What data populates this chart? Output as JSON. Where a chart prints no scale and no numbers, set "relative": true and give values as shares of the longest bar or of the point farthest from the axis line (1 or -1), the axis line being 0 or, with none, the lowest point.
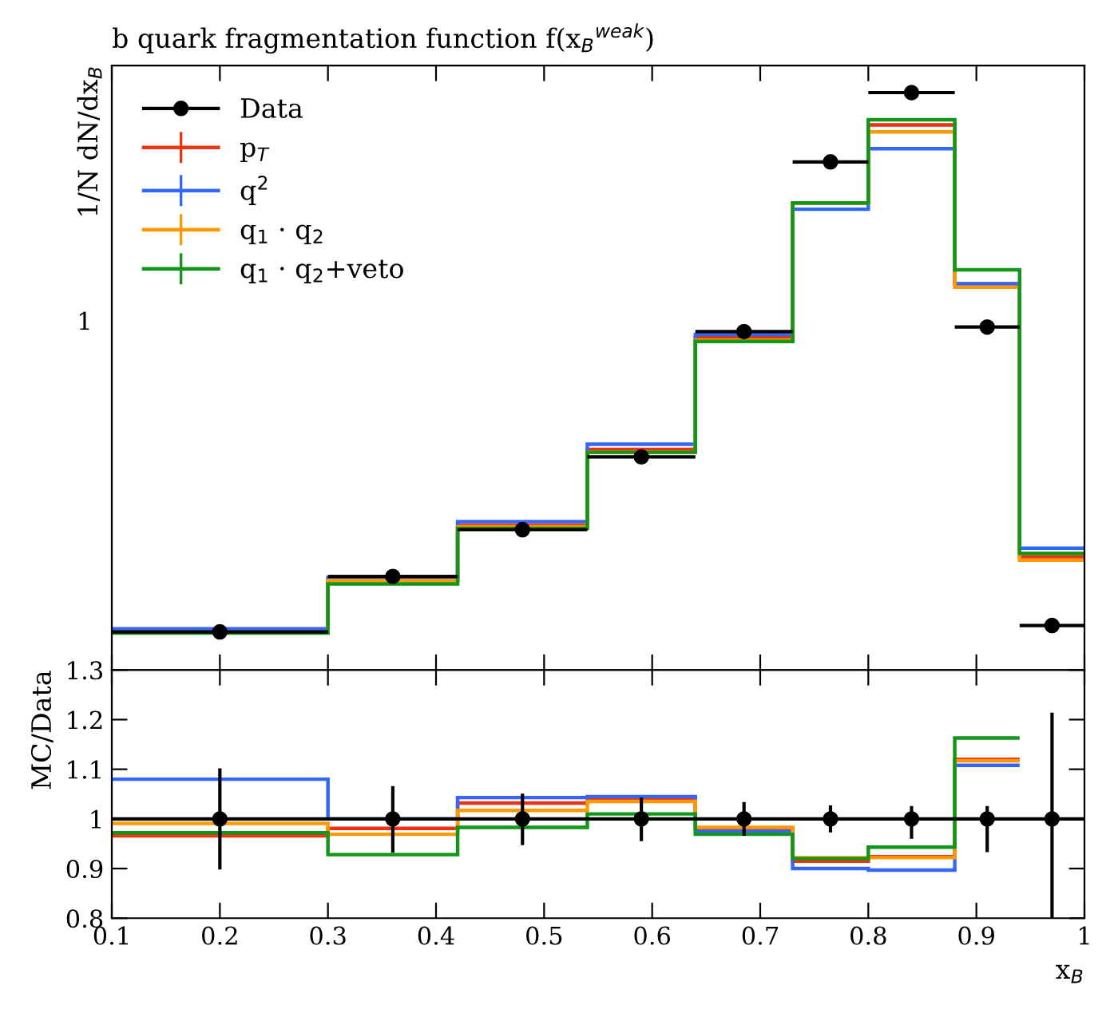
{
  "chart_data": [
    {
      "type": "histogram",
      "title": "b quark fragmentation function f(x$_{B}$$^{weak}$)",
      "ylabel": "1/N dN/dx$_{B}$",
      "relative": true,
      "xlim": [
        0.1,
        1
      ],
      "tick_labels": false,
      "legend": "top left",
      "grid": false,
      "annotations": [
        "1"
      ],
      "bins": [
        0.1,
        0.3,
        0.42,
        0.54,
        0.64,
        0.73,
        0.8,
        0.88,
        0.94,
        1.0
      ],
      "series": [
        {
          "name": "Data",
          "type": "scatter",
          "marker": "circle",
          "color": "#000000",
          "x": [
            0.2,
            0.36,
            0.48,
            0.59,
            0.685,
            0.765,
            0.84,
            0.91,
            0.97
          ],
          "values": [
            0.066,
            0.162,
            0.243,
            0.369,
            0.586,
            0.88,
            1,
            0.594,
            0.077
          ],
          "xerrors": [
            [
              0.1,
              0.3
            ],
            [
              0.3,
              0.42
            ],
            [
              0.42,
              0.54
            ],
            [
              0.54,
              0.64
            ],
            [
              0.64,
              0.73
            ],
            [
              0.73,
              0.8
            ],
            [
              0.8,
              0.88
            ],
            [
              0.88,
              0.94
            ],
            [
              0.94,
              1.0
            ]
          ]
        },
        {
          "name": "p$_{T}$",
          "color": "#ee3311",
          "values": [
            0.0652,
            0.156,
            0.251,
            0.382,
            0.576,
            0.809,
            0.944,
            0.669,
            0.196
          ]
        },
        {
          "name": "q$^{2}$",
          "color": "#3366ff",
          "values": [
            0.0712,
            0.16,
            0.257,
            0.391,
            0.581,
            0.798,
            0.903,
            0.669,
            0.211
          ]
        },
        {
          "name": "q$_{1}$ · q$_{2}$",
          "color": "#ff9900",
          "values": [
            0.0655,
            0.155,
            0.248,
            0.377,
            0.571,
            0.809,
            0.932,
            0.663,
            0.19
          ]
        },
        {
          "name": "q$_{1}$ · q$_{2}$+veto",
          "color": "#109618",
          "values": [
            0.064,
            0.149,
            0.245,
            0.377,
            0.569,
            0.809,
            0.953,
            0.693,
            0.202
          ]
        }
      ]
    },
    {
      "type": "histogram",
      "xlabel": "x$_{B}$",
      "ylabel": "MC/Data",
      "xlim": [
        0.1,
        1
      ],
      "ylim": [
        0.8,
        1.3
      ],
      "grid": false,
      "xticks": [
        0.1,
        0.2,
        0.3,
        0.4,
        0.5,
        0.6,
        0.7,
        0.8,
        0.9,
        1
      ],
      "yticks": [
        0.8,
        0.9,
        1,
        1.1,
        1.2,
        1.3
      ],
      "bins": [
        0.1,
        0.3,
        0.42,
        0.54,
        0.64,
        0.73,
        0.8,
        0.88,
        0.94
      ],
      "ref_lines": [
        {
          "axis": "y",
          "value": 1,
          "color": "#000000"
        }
      ],
      "series": [
        {
          "type": "scatter",
          "marker": "circle",
          "color": "#000000",
          "x": [
            0.2,
            0.36,
            0.48,
            0.59,
            0.685,
            0.765,
            0.84,
            0.91,
            0.97
          ],
          "values": [
            1,
            1,
            1,
            1,
            1,
            1,
            1,
            1,
            1
          ],
          "errors": [
            [
              0.898,
              1.102
            ],
            [
              0.932,
              1.066
            ],
            [
              0.947,
              1.051
            ],
            [
              0.955,
              1.043
            ],
            [
              0.966,
              1.034
            ],
            [
              0.973,
              1.027
            ],
            [
              0.96,
              1.026
            ],
            [
              0.933,
              1.026
            ],
            [
              0.8,
              1.214
            ]
          ]
        },
        {
          "color": "#ee3311",
          "values": [
            0.966,
            0.981,
            1.032,
            1.04,
            0.981,
            0.915,
            0.924,
            1.12
          ]
        },
        {
          "color": "#3366ff",
          "values": [
            1.08,
            1.0,
            1.043,
            1.045,
            0.975,
            0.9,
            0.897,
            1.108
          ]
        },
        {
          "color": "#ff9900",
          "values": [
            0.991,
            0.969,
            1.017,
            1.035,
            0.983,
            0.922,
            0.922,
            1.117
          ]
        },
        {
          "color": "#109618",
          "values": [
            0.972,
            0.928,
            0.983,
            1.01,
            0.969,
            0.92,
            0.943,
            1.163
          ]
        }
      ]
    }
  ]
}
